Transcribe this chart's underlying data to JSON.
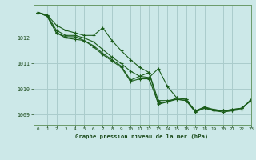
{
  "title": "Graphe pression niveau de la mer (hPa)",
  "background_color": "#cce8e8",
  "grid_color": "#aacccc",
  "line_color": "#1a5c1a",
  "xlim": [
    -0.5,
    23
  ],
  "ylim": [
    1008.6,
    1013.3
  ],
  "yticks": [
    1009,
    1010,
    1011,
    1012
  ],
  "xticks": [
    0,
    1,
    2,
    3,
    4,
    5,
    6,
    7,
    8,
    9,
    10,
    11,
    12,
    13,
    14,
    15,
    16,
    17,
    18,
    19,
    20,
    21,
    22,
    23
  ],
  "series": [
    [
      1013.0,
      1012.9,
      1012.5,
      1012.3,
      1012.2,
      1012.1,
      1012.1,
      1012.4,
      1011.9,
      1011.5,
      1011.15,
      1010.85,
      1010.65,
      1009.55,
      1009.55,
      1009.6,
      1009.55,
      1009.15,
      1009.25,
      1009.2,
      1009.15,
      1009.2,
      1009.25,
      1009.55
    ],
    [
      1013.0,
      1012.9,
      1012.3,
      1012.1,
      1012.1,
      1012.0,
      1011.85,
      1011.55,
      1011.25,
      1011.0,
      1010.7,
      1010.5,
      1010.45,
      1010.8,
      1010.1,
      1009.65,
      1009.6,
      1009.15,
      1009.3,
      1009.2,
      1009.15,
      1009.2,
      1009.25,
      1009.55
    ],
    [
      1013.0,
      1012.85,
      1012.2,
      1012.05,
      1012.05,
      1011.9,
      1011.7,
      1011.4,
      1011.15,
      1010.9,
      1010.35,
      1010.5,
      1010.65,
      1009.4,
      1009.5,
      1009.65,
      1009.6,
      1009.1,
      1009.3,
      1009.15,
      1009.15,
      1009.15,
      1009.25,
      1009.55
    ],
    [
      1013.0,
      1012.85,
      1012.2,
      1012.0,
      1011.95,
      1011.9,
      1011.65,
      1011.35,
      1011.1,
      1010.85,
      1010.3,
      1010.4,
      1010.4,
      1009.45,
      1009.5,
      1009.6,
      1009.55,
      1009.1,
      1009.25,
      1009.15,
      1009.1,
      1009.15,
      1009.2,
      1009.6
    ]
  ]
}
